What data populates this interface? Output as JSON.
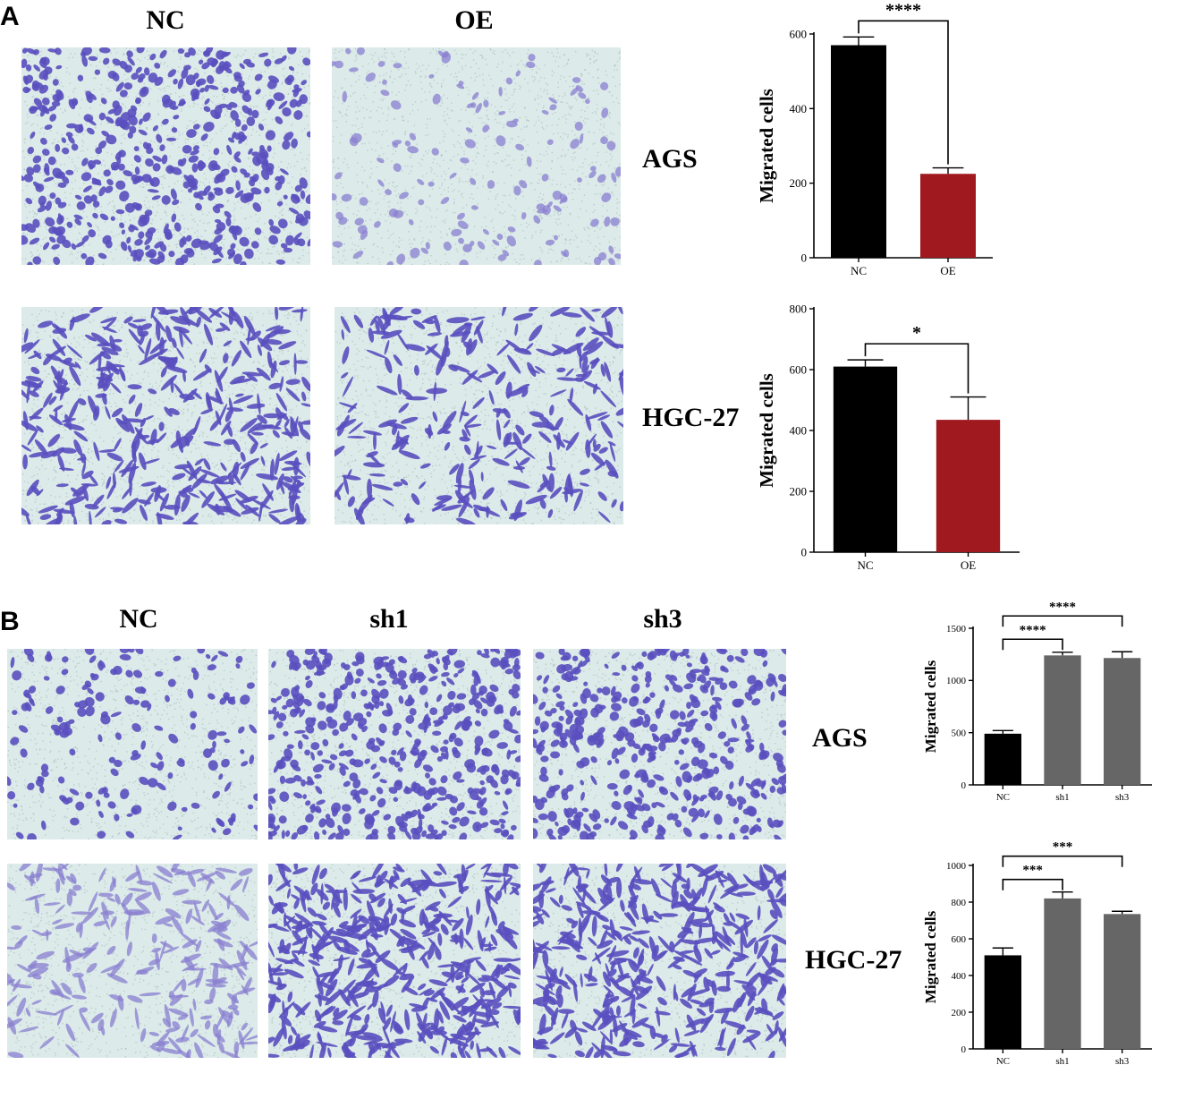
{
  "figure": {
    "panelA": {
      "label": "A",
      "columns": [
        "NC",
        "OE"
      ],
      "rows": [
        "AGS",
        "HGC-27"
      ]
    },
    "panelB": {
      "label": "B",
      "columns": [
        "NC",
        "sh1",
        "sh3"
      ],
      "rows": [
        "AGS",
        "HGC-27"
      ]
    }
  },
  "colors": {
    "micro_background": "#dcebe9",
    "micro_cell": "#5a4fbf",
    "micro_cell_light": "#8a7fd0",
    "bar_black": "#000000",
    "bar_red": "#a0191e",
    "bar_gray": "#666666"
  },
  "chart_data": [
    {
      "id": "A-AGS",
      "type": "bar",
      "ylabel": "Migrated cells",
      "categories": [
        "NC",
        "OE"
      ],
      "values": [
        570,
        225
      ],
      "errors": [
        22,
        16
      ],
      "bar_colors": [
        "#000000",
        "#a0191e"
      ],
      "ylim": [
        0,
        600
      ],
      "yticks": [
        "0",
        "200",
        "400",
        "600"
      ],
      "significance": [
        {
          "from": 0,
          "to": 1,
          "label": "****"
        }
      ]
    },
    {
      "id": "A-HGC27",
      "type": "bar",
      "ylabel": "Migrated cells",
      "categories": [
        "NC",
        "OE"
      ],
      "values": [
        610,
        435
      ],
      "errors": [
        22,
        75
      ],
      "bar_colors": [
        "#000000",
        "#a0191e"
      ],
      "ylim": [
        0,
        800
      ],
      "yticks": [
        "0",
        "200",
        "400",
        "600",
        "800"
      ],
      "significance": [
        {
          "from": 0,
          "to": 1,
          "label": "*"
        }
      ]
    },
    {
      "id": "B-AGS",
      "type": "bar",
      "ylabel": "Migrated cells",
      "categories": [
        "NC",
        "sh1",
        "sh3"
      ],
      "values": [
        490,
        1240,
        1215
      ],
      "errors": [
        30,
        30,
        60
      ],
      "bar_colors": [
        "#000000",
        "#666666",
        "#666666"
      ],
      "ylim": [
        0,
        1500
      ],
      "yticks": [
        "0",
        "500",
        "1000",
        "1500"
      ],
      "significance": [
        {
          "from": 0,
          "to": 1,
          "label": "****"
        },
        {
          "from": 0,
          "to": 2,
          "label": "****"
        }
      ]
    },
    {
      "id": "B-HGC27",
      "type": "bar",
      "ylabel": "Migrated cells",
      "categories": [
        "NC",
        "sh1",
        "sh3"
      ],
      "values": [
        510,
        820,
        735
      ],
      "errors": [
        40,
        35,
        15
      ],
      "bar_colors": [
        "#000000",
        "#666666",
        "#666666"
      ],
      "ylim": [
        0,
        1000
      ],
      "yticks": [
        "0",
        "200",
        "400",
        "600",
        "800",
        "1000"
      ],
      "significance": [
        {
          "from": 0,
          "to": 1,
          "label": "***"
        },
        {
          "from": 0,
          "to": 2,
          "label": "***"
        }
      ]
    }
  ]
}
